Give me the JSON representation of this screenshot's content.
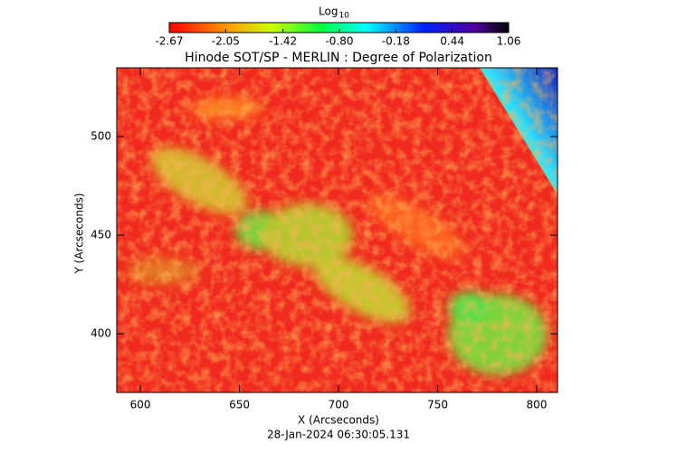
{
  "chart_data": {
    "type": "image",
    "title": "Hinode SOT/SP - MERLIN : Degree of Polarization",
    "xlabel": "X (Arcseconds)",
    "ylabel": "Y (Arcseconds)",
    "footer": "28-Jan-2024 06:30:05.131",
    "xlim": [
      588.1,
      810.5
    ],
    "xticks": [
      600,
      650,
      700,
      750,
      800
    ],
    "ylim": [
      370.2,
      534.9
    ],
    "yticks": [
      400,
      450,
      500
    ],
    "colorbar_label": "Log",
    "colorbar_label_sub": "10",
    "clim": [
      -2.67,
      1.06
    ],
    "cticks": [
      -2.67,
      -2.05,
      -1.42,
      {
        "value": -0.8,
        "label": "-0.80"
      },
      -0.18,
      0.44,
      1.06
    ]
  }
}
